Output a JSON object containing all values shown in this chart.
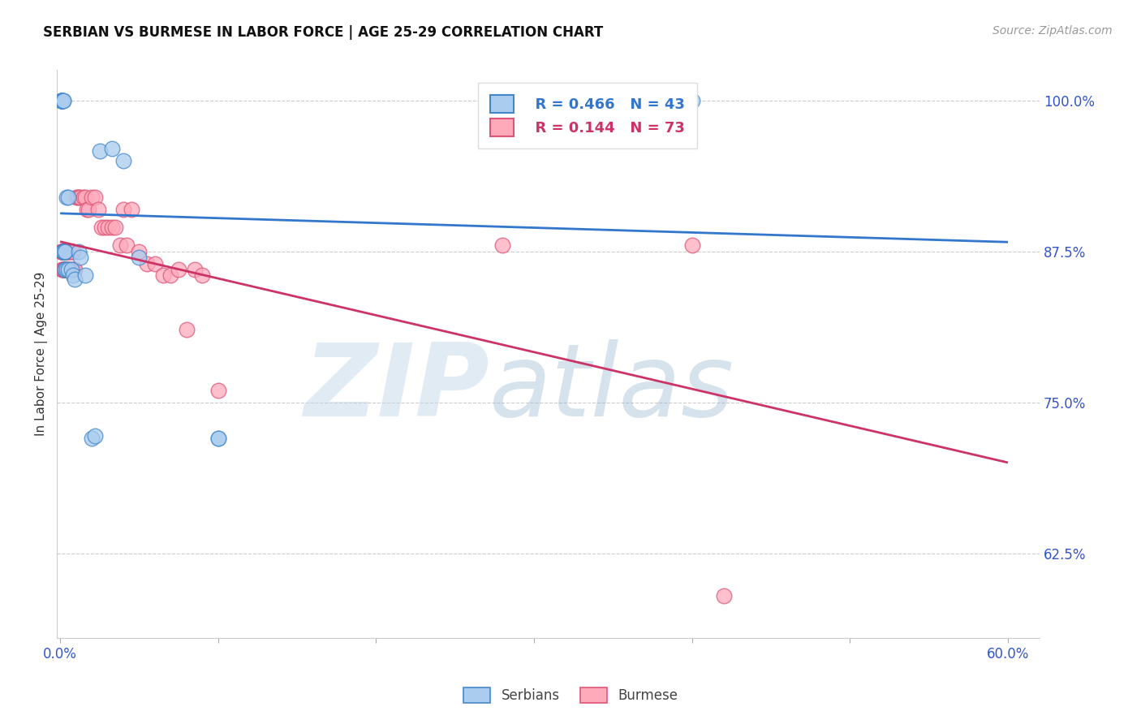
{
  "title": "SERBIAN VS BURMESE IN LABOR FORCE | AGE 25-29 CORRELATION CHART",
  "source": "Source: ZipAtlas.com",
  "ylabel": "In Labor Force | Age 25-29",
  "xlim": [
    -0.002,
    0.62
  ],
  "ylim": [
    0.555,
    1.025
  ],
  "xticks": [
    0.0,
    0.1,
    0.2,
    0.3,
    0.4,
    0.5,
    0.6
  ],
  "xticklabels": [
    "0.0%",
    "",
    "",
    "",
    "",
    "",
    "60.0%"
  ],
  "yticks": [
    0.625,
    0.75,
    0.875,
    1.0
  ],
  "yticklabels": [
    "62.5%",
    "75.0%",
    "87.5%",
    "100.0%"
  ],
  "serbian_face_color": "#aaccee",
  "burmese_face_color": "#ffaabb",
  "serbian_edge_color": "#4488cc",
  "burmese_edge_color": "#dd5577",
  "serbian_line_color": "#3377cc",
  "burmese_line_color": "#cc3366",
  "legend_r_serbian": "R = 0.466",
  "legend_n_serbian": "N = 43",
  "legend_r_burmese": "R = 0.144",
  "legend_n_burmese": "N = 73",
  "serbian_x": [
    0.001,
    0.001,
    0.001,
    0.001,
    0.001,
    0.001,
    0.001,
    0.001,
    0.001,
    0.001,
    0.001,
    0.002,
    0.002,
    0.002,
    0.002,
    0.002,
    0.002,
    0.002,
    0.002,
    0.003,
    0.003,
    0.003,
    0.003,
    0.003,
    0.004,
    0.004,
    0.005,
    0.005,
    0.007,
    0.008,
    0.009,
    0.012,
    0.013,
    0.016,
    0.02,
    0.022,
    0.025,
    0.033,
    0.04,
    0.05,
    0.1,
    0.1,
    0.4
  ],
  "serbian_y": [
    1.0,
    1.0,
    1.0,
    1.0,
    1.0,
    1.0,
    1.0,
    1.0,
    1.0,
    1.0,
    1.0,
    1.0,
    1.0,
    0.875,
    0.875,
    0.875,
    0.875,
    0.875,
    0.875,
    0.875,
    0.875,
    0.875,
    0.86,
    0.86,
    0.86,
    0.92,
    0.92,
    0.86,
    0.86,
    0.855,
    0.852,
    0.875,
    0.87,
    0.855,
    0.72,
    0.722,
    0.958,
    0.96,
    0.95,
    0.87,
    0.72,
    0.72,
    1.0
  ],
  "burmese_x": [
    0.001,
    0.001,
    0.001,
    0.001,
    0.001,
    0.001,
    0.001,
    0.001,
    0.002,
    0.002,
    0.002,
    0.002,
    0.002,
    0.002,
    0.002,
    0.002,
    0.002,
    0.002,
    0.002,
    0.003,
    0.003,
    0.003,
    0.003,
    0.003,
    0.003,
    0.003,
    0.004,
    0.004,
    0.004,
    0.004,
    0.005,
    0.005,
    0.005,
    0.006,
    0.006,
    0.007,
    0.007,
    0.008,
    0.008,
    0.009,
    0.01,
    0.011,
    0.012,
    0.013,
    0.015,
    0.016,
    0.017,
    0.018,
    0.02,
    0.022,
    0.024,
    0.026,
    0.028,
    0.03,
    0.033,
    0.035,
    0.038,
    0.04,
    0.042,
    0.045,
    0.05,
    0.055,
    0.06,
    0.065,
    0.07,
    0.075,
    0.08,
    0.085,
    0.09,
    0.1,
    0.28,
    0.4,
    0.42
  ],
  "burmese_y": [
    0.875,
    0.875,
    0.875,
    0.875,
    0.875,
    0.875,
    0.875,
    0.86,
    0.875,
    0.875,
    0.875,
    0.875,
    0.875,
    0.86,
    0.86,
    0.86,
    0.86,
    0.86,
    0.875,
    0.875,
    0.875,
    0.875,
    0.86,
    0.86,
    0.86,
    0.875,
    0.875,
    0.875,
    0.86,
    0.86,
    0.875,
    0.875,
    0.86,
    0.875,
    0.86,
    0.875,
    0.86,
    0.875,
    0.86,
    0.86,
    0.92,
    0.92,
    0.92,
    0.92,
    0.92,
    0.92,
    0.91,
    0.91,
    0.92,
    0.92,
    0.91,
    0.895,
    0.895,
    0.895,
    0.895,
    0.895,
    0.88,
    0.91,
    0.88,
    0.91,
    0.875,
    0.865,
    0.865,
    0.855,
    0.855,
    0.86,
    0.81,
    0.86,
    0.855,
    0.76,
    0.88,
    0.88,
    0.59
  ]
}
